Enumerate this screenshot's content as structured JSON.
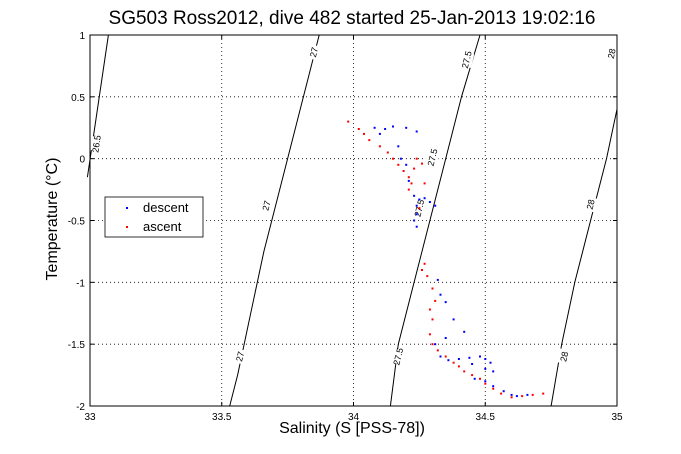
{
  "chart_data": {
    "type": "scatter",
    "title": "SG503 Ross2012, dive 482 started 25-Jan-2013 19:02:16",
    "xlabel": "Salinity (S [PSS-78])",
    "ylabel": "Temperature (°C)",
    "xlim": [
      33,
      35
    ],
    "ylim": [
      -2,
      1
    ],
    "xticks": [
      33,
      33.5,
      34,
      34.5,
      35
    ],
    "xtick_labels": [
      "33",
      "33.5",
      "34",
      "34.5",
      "35"
    ],
    "yticks": [
      -2,
      -1.5,
      -1,
      -0.5,
      0,
      0.5,
      1
    ],
    "ytick_labels": [
      "-2",
      "-1.5",
      "-1",
      "-0.5",
      "0",
      "0.5",
      "1"
    ],
    "grid": true,
    "legend": {
      "position": "left",
      "entries": [
        {
          "label": "descent",
          "color": "#0000ff"
        },
        {
          "label": "ascent",
          "color": "#ff0000"
        }
      ]
    },
    "density_contours": [
      {
        "level": 26.5,
        "points": [
          [
            32.99,
            -0.15
          ],
          [
            33.07,
            1.0
          ]
        ],
        "labels": [
          {
            "text": "26.5",
            "at": [
              33.025,
              0.12
            ]
          }
        ]
      },
      {
        "level": 27,
        "points": [
          [
            33.53,
            -2.0
          ],
          [
            33.56,
            -1.75
          ],
          [
            33.61,
            -1.25
          ],
          [
            33.66,
            -0.75
          ],
          [
            33.72,
            -0.25
          ],
          [
            33.78,
            0.25
          ],
          [
            33.84,
            0.75
          ],
          [
            33.87,
            1.0
          ]
        ],
        "labels": [
          {
            "text": "27",
            "at": [
              33.57,
              -1.6
            ]
          },
          {
            "text": "27",
            "at": [
              33.67,
              -0.38
            ]
          },
          {
            "text": "27",
            "at": [
              33.85,
              0.86
            ]
          }
        ]
      },
      {
        "level": 27.5,
        "points": [
          [
            34.14,
            -2.0
          ],
          [
            34.17,
            -1.5
          ],
          [
            34.23,
            -1.0
          ],
          [
            34.29,
            -0.5
          ],
          [
            34.35,
            0.0
          ],
          [
            34.41,
            0.5
          ],
          [
            34.48,
            1.0
          ]
        ],
        "labels": [
          {
            "text": "27.5",
            "at": [
              34.17,
              -1.6
            ]
          },
          {
            "text": "27.5",
            "at": [
              34.25,
              -0.4
            ]
          },
          {
            "text": "27.5",
            "at": [
              34.3,
              0.01
            ]
          },
          {
            "text": "27.5",
            "at": [
              34.43,
              0.8
            ]
          }
        ]
      },
      {
        "level": 28,
        "points": [
          [
            34.75,
            -2.0
          ],
          [
            34.79,
            -1.5
          ],
          [
            34.84,
            -1.0
          ],
          [
            34.9,
            -0.5
          ],
          [
            34.96,
            0.0
          ],
          [
            35.0,
            0.4
          ]
        ],
        "labels": [
          {
            "text": "28",
            "at": [
              34.8,
              -1.6
            ]
          },
          {
            "text": "28",
            "at": [
              34.9,
              -0.37
            ]
          },
          {
            "text": "28",
            "at": [
              34.98,
              0.85
            ]
          }
        ]
      }
    ],
    "series": [
      {
        "name": "descent",
        "color": "#0000ff",
        "points": [
          [
            34.08,
            0.25
          ],
          [
            34.12,
            0.24
          ],
          [
            34.15,
            0.26
          ],
          [
            34.2,
            0.25
          ],
          [
            34.24,
            0.22
          ],
          [
            34.1,
            0.2
          ],
          [
            34.17,
            0.1
          ],
          [
            34.18,
            0.0
          ],
          [
            34.2,
            -0.05
          ],
          [
            34.21,
            -0.18
          ],
          [
            34.23,
            -0.3
          ],
          [
            34.24,
            -0.38
          ],
          [
            34.25,
            -0.33
          ],
          [
            34.27,
            -0.32
          ],
          [
            34.29,
            -0.35
          ],
          [
            34.31,
            -0.38
          ],
          [
            34.24,
            -0.45
          ],
          [
            34.23,
            -0.5
          ],
          [
            34.24,
            -0.55
          ],
          [
            34.32,
            -0.98
          ],
          [
            34.33,
            -1.1
          ],
          [
            34.35,
            -1.16
          ],
          [
            34.38,
            -1.3
          ],
          [
            34.42,
            -1.4
          ],
          [
            34.35,
            -1.45
          ],
          [
            34.31,
            -1.5
          ],
          [
            34.33,
            -1.6
          ],
          [
            34.36,
            -1.63
          ],
          [
            34.4,
            -1.62
          ],
          [
            34.44,
            -1.61
          ],
          [
            34.48,
            -1.6
          ],
          [
            34.5,
            -1.62
          ],
          [
            34.52,
            -1.65
          ],
          [
            34.45,
            -1.66
          ],
          [
            34.5,
            -1.7
          ],
          [
            34.53,
            -1.72
          ],
          [
            34.46,
            -1.78
          ],
          [
            34.5,
            -1.8
          ],
          [
            34.53,
            -1.84
          ],
          [
            34.57,
            -1.88
          ],
          [
            34.6,
            -1.91
          ],
          [
            34.62,
            -1.92
          ],
          [
            34.66,
            -1.91
          ]
        ]
      },
      {
        "name": "ascent",
        "color": "#ff0000",
        "points": [
          [
            33.98,
            0.3
          ],
          [
            34.02,
            0.24
          ],
          [
            34.04,
            0.2
          ],
          [
            34.06,
            0.15
          ],
          [
            34.1,
            0.1
          ],
          [
            34.13,
            0.05
          ],
          [
            34.15,
            0.0
          ],
          [
            34.17,
            -0.05
          ],
          [
            34.19,
            -0.1
          ],
          [
            34.21,
            -0.15
          ],
          [
            34.22,
            -0.2
          ],
          [
            34.21,
            -0.25
          ],
          [
            34.23,
            -0.08
          ],
          [
            34.24,
            0.0
          ],
          [
            34.26,
            -0.04
          ],
          [
            34.27,
            -0.2
          ],
          [
            34.25,
            -0.4
          ],
          [
            34.26,
            -0.9
          ],
          [
            34.27,
            -0.85
          ],
          [
            34.28,
            -0.95
          ],
          [
            34.3,
            -1.05
          ],
          [
            34.31,
            -1.15
          ],
          [
            34.29,
            -1.22
          ],
          [
            34.3,
            -1.3
          ],
          [
            34.29,
            -1.42
          ],
          [
            34.3,
            -1.5
          ],
          [
            34.32,
            -1.55
          ],
          [
            34.35,
            -1.6
          ],
          [
            34.38,
            -1.65
          ],
          [
            34.4,
            -1.68
          ],
          [
            34.42,
            -1.72
          ],
          [
            34.45,
            -1.75
          ],
          [
            34.48,
            -1.78
          ],
          [
            34.5,
            -1.82
          ],
          [
            34.53,
            -1.86
          ],
          [
            34.56,
            -1.9
          ],
          [
            34.6,
            -1.93
          ],
          [
            34.64,
            -1.92
          ],
          [
            34.68,
            -1.91
          ],
          [
            34.72,
            -1.9
          ]
        ]
      }
    ]
  }
}
